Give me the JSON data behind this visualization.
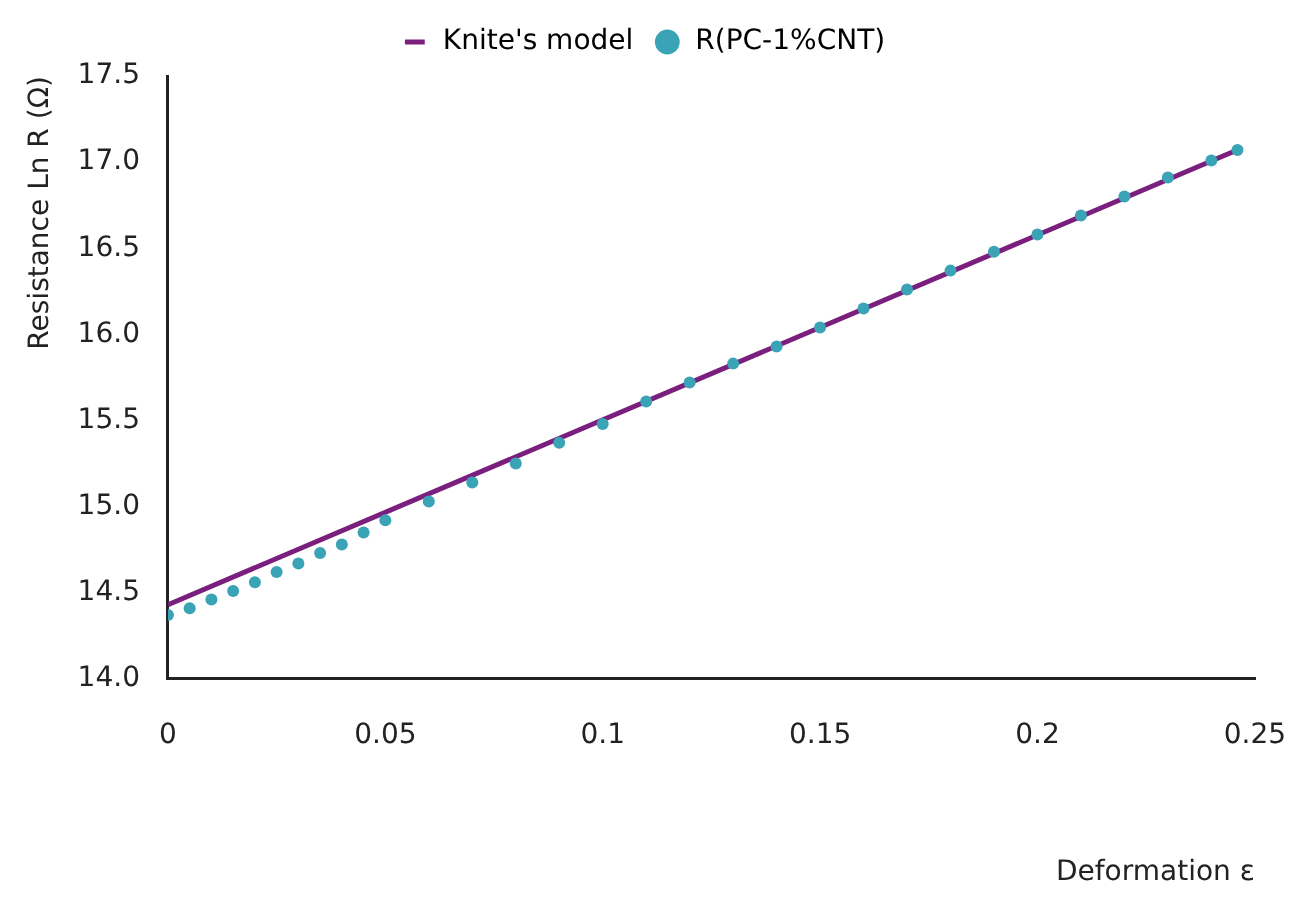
{
  "chart_data": {
    "type": "line",
    "xlabel": "Deformation ε",
    "ylabel": "Resistance Ln R (Ω)",
    "xlim": [
      0,
      0.25
    ],
    "xticks": [
      0,
      0.05,
      0.1,
      0.15,
      0.2,
      0.25
    ],
    "ylim": [
      14,
      17.5
    ],
    "yticks": [
      {
        "value": 14,
        "label": "14.0"
      },
      14.5,
      {
        "value": 15,
        "label": "15.0"
      },
      15.5,
      {
        "value": 16,
        "label": "16.0"
      },
      16.5,
      {
        "value": 17,
        "label": "17.0"
      },
      17.5
    ],
    "grid": false,
    "legend": "top",
    "series": [
      {
        "name": "Knite's model",
        "color": "#7a1f7e",
        "marker": "none",
        "x": [
          0,
          0.245
        ],
        "values": [
          14.43,
          17.06
        ]
      },
      {
        "name": "R(PC-1%CNT)",
        "type": "scatter",
        "color": "#3aa3b6",
        "marker": "circle",
        "x": [
          0,
          0.005,
          0.01,
          0.015,
          0.02,
          0.025,
          0.03,
          0.035,
          0.04,
          0.045,
          0.05,
          0.06,
          0.07,
          0.08,
          0.09,
          0.1,
          0.11,
          0.12,
          0.13,
          0.14,
          0.15,
          0.16,
          0.17,
          0.18,
          0.19,
          0.2,
          0.21,
          0.22,
          0.23,
          0.24,
          0.246
        ],
        "values": [
          14.37,
          14.41,
          14.46,
          14.51,
          14.56,
          14.62,
          14.67,
          14.73,
          14.78,
          14.85,
          14.92,
          15.03,
          15.14,
          15.25,
          15.37,
          15.48,
          15.61,
          15.72,
          15.83,
          15.93,
          16.04,
          16.15,
          16.26,
          16.37,
          16.48,
          16.58,
          16.69,
          16.8,
          16.91,
          17.01,
          17.07
        ]
      }
    ]
  }
}
